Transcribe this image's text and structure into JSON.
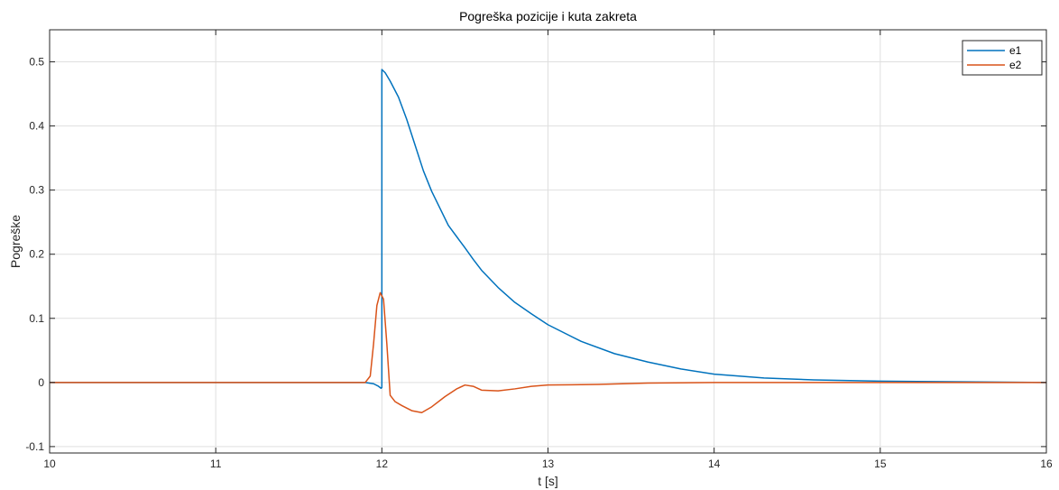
{
  "chart_data": {
    "type": "line",
    "title": "Pogreška pozicije i kuta zakreta",
    "xlabel": "t [s]",
    "ylabel": "Pogreške",
    "xlim": [
      10,
      16
    ],
    "ylim": [
      -0.11,
      0.55
    ],
    "xticks": [
      10,
      11,
      12,
      13,
      14,
      15,
      16
    ],
    "yticks": [
      -0.1,
      0,
      0.1,
      0.2,
      0.3,
      0.4,
      0.5
    ],
    "xtick_labels": [
      "10",
      "11",
      "12",
      "13",
      "14",
      "15",
      "16"
    ],
    "ytick_labels": [
      "-0.1",
      "0",
      "0.1",
      "0.2",
      "0.3",
      "0.4",
      "0.5"
    ],
    "grid": true,
    "legend_position": "top-right",
    "series": [
      {
        "name": "e1",
        "color": "#0072BD",
        "x": [
          10,
          11.9,
          11.95,
          11.98,
          11.995,
          12.0,
          12.0,
          12.02,
          12.05,
          12.1,
          12.15,
          12.2,
          12.25,
          12.3,
          12.4,
          12.5,
          12.55,
          12.6,
          12.7,
          12.8,
          12.9,
          13.0,
          13.2,
          13.4,
          13.6,
          13.8,
          14.0,
          14.3,
          14.6,
          15.0,
          15.5,
          16.0
        ],
        "y": [
          0.0,
          0.0,
          -0.002,
          -0.006,
          -0.009,
          -0.008,
          0.488,
          0.483,
          0.47,
          0.445,
          0.41,
          0.37,
          0.33,
          0.298,
          0.245,
          0.21,
          0.192,
          0.175,
          0.148,
          0.125,
          0.107,
          0.09,
          0.064,
          0.045,
          0.032,
          0.021,
          0.013,
          0.007,
          0.004,
          0.002,
          0.001,
          0.0
        ]
      },
      {
        "name": "e2",
        "color": "#D95319",
        "x": [
          10,
          11.9,
          11.93,
          11.95,
          11.97,
          11.99,
          12.01,
          12.03,
          12.05,
          12.08,
          12.12,
          12.18,
          12.24,
          12.3,
          12.38,
          12.45,
          12.5,
          12.55,
          12.6,
          12.7,
          12.8,
          12.9,
          13.0,
          13.3,
          13.6,
          14.0,
          15.0,
          16.0
        ],
        "y": [
          0.0,
          0.0,
          0.01,
          0.06,
          0.12,
          0.14,
          0.13,
          0.06,
          -0.02,
          -0.03,
          -0.036,
          -0.044,
          -0.047,
          -0.038,
          -0.022,
          -0.01,
          -0.004,
          -0.006,
          -0.012,
          -0.013,
          -0.01,
          -0.006,
          -0.004,
          -0.003,
          -0.001,
          0.0,
          0.0,
          0.0
        ]
      }
    ]
  }
}
